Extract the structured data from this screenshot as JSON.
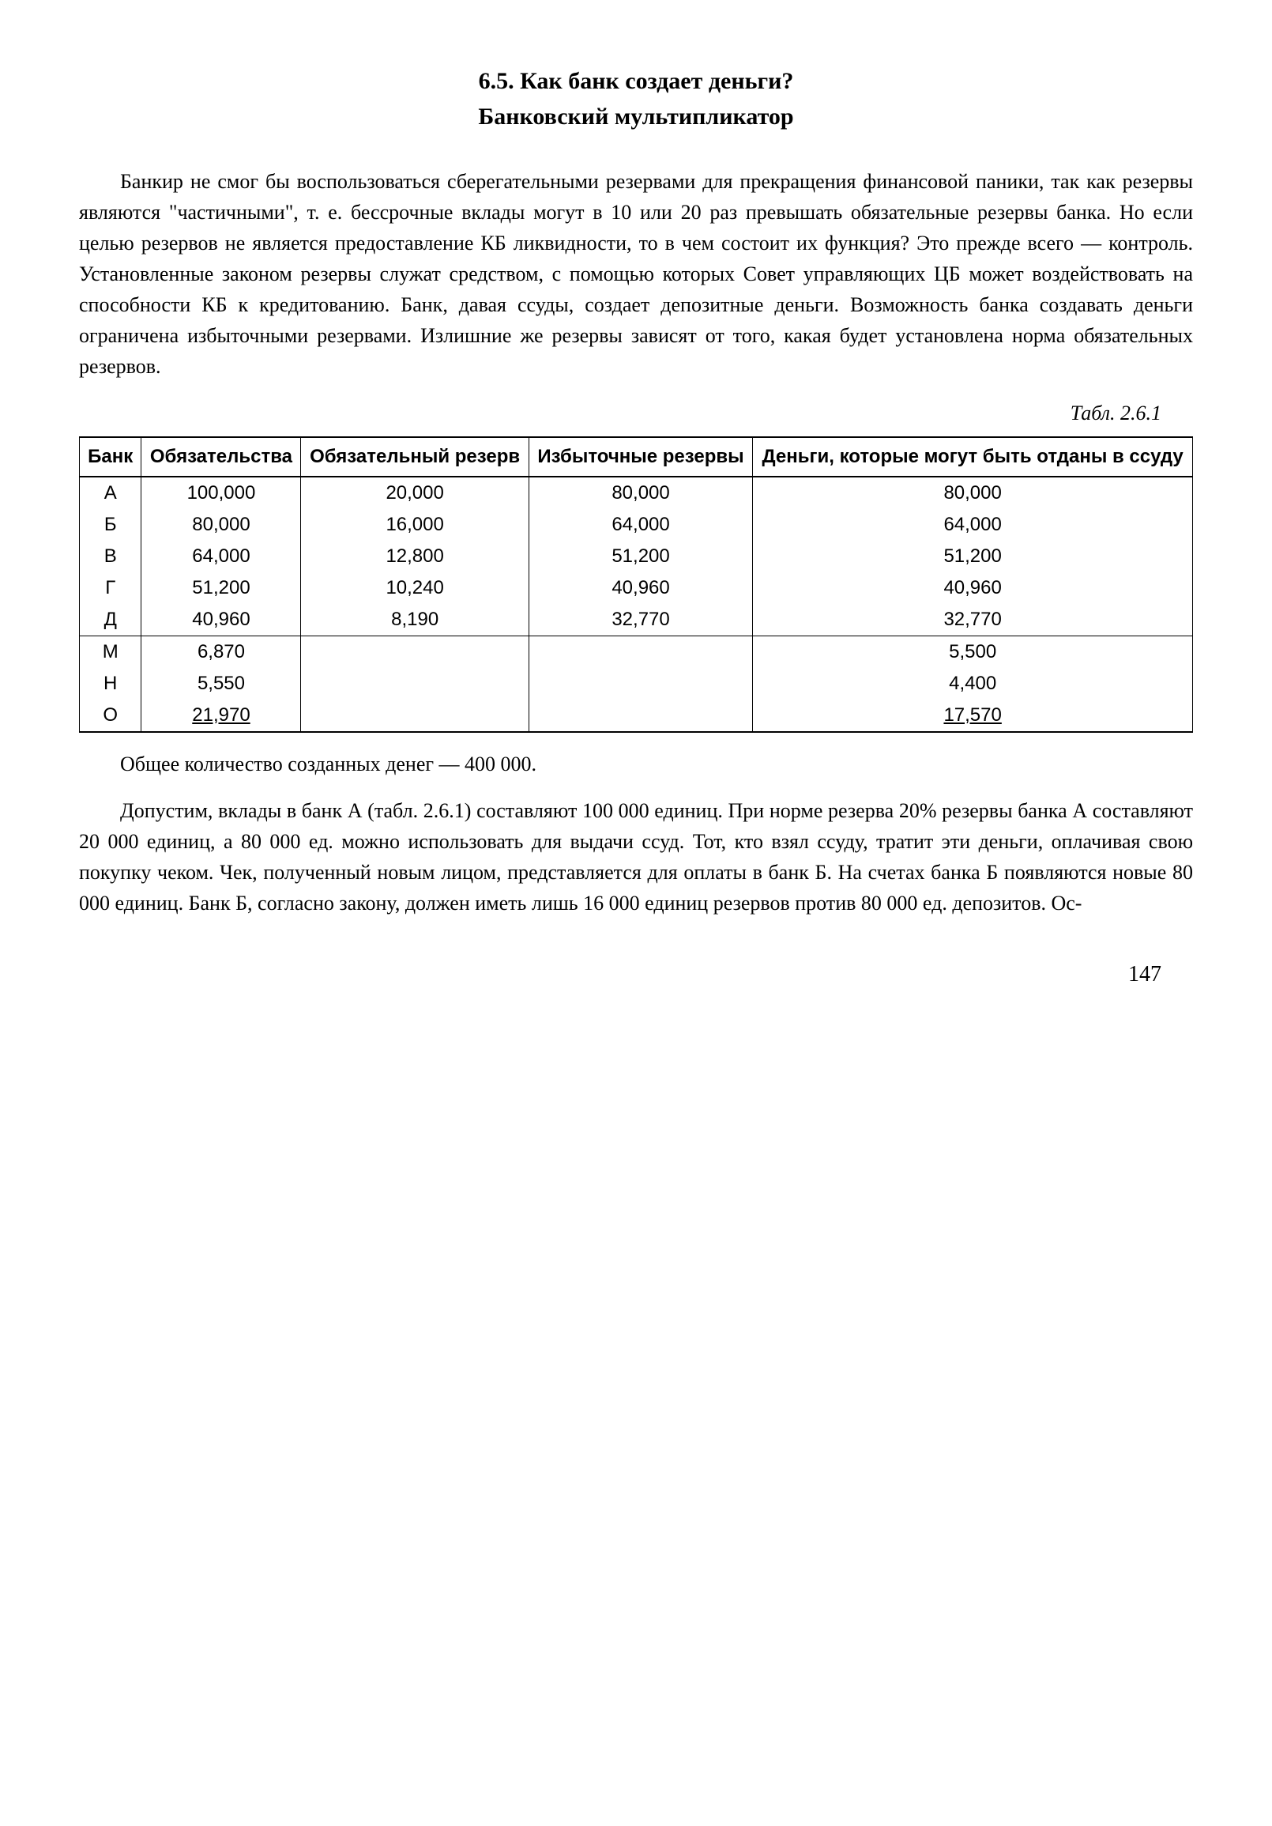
{
  "heading": {
    "line1": "6.5. Как банк создает деньги?",
    "line2": "Банковский мультипликатор"
  },
  "para1": "Банкир не смог бы воспользоваться сберегательными ре­зервами для прекращения финансовой паники, так как ре­зервы являются \"частичными\", т. е. бессрочные вклады могут в 10 или 20 раз превышать обязательные резервы банка. Но если целью резервов не является предоставление КБ ликвид­ности, то в чем состоит их функция? Это прежде всего — контроль. Установленные законом резервы служат средством, с помощью которых Совет управляющих ЦБ может воздей­ствовать на способности КБ к кредитованию. Банк, давая ссу­ды, создает депозитные деньги. Возможность банка создавать деньги ограничена избыточными резервами. Излишние же ре­зервы зависят от того, какая будет установлена норма обяза­тельных резервов.",
  "table": {
    "caption": "Табл. 2.6.1",
    "columns": [
      "Банк",
      "Обязатель­ства",
      "Обязатель­ный резерв",
      "Избыточные резервы",
      "Деньги, которые могут быть отданы в ссуду"
    ],
    "section1": [
      {
        "bank": "А",
        "v1": "100,000",
        "v2": "20,000",
        "v3": "80,000",
        "v4": "80,000"
      },
      {
        "bank": "Б",
        "v1": "80,000",
        "v2": "16,000",
        "v3": "64,000",
        "v4": "64,000"
      },
      {
        "bank": "В",
        "v1": "64,000",
        "v2": "12,800",
        "v3": "51,200",
        "v4": "51,200"
      },
      {
        "bank": "Г",
        "v1": "51,200",
        "v2": "10,240",
        "v3": "40,960",
        "v4": "40,960"
      },
      {
        "bank": "Д",
        "v1": "40,960",
        "v2": "8,190",
        "v3": "32,770",
        "v4": "32,770"
      }
    ],
    "section2": [
      {
        "bank": "М",
        "v1": "6,870",
        "v2": "",
        "v3": "",
        "v4": "5,500"
      },
      {
        "bank": "Н",
        "v1": "5,550",
        "v2": "",
        "v3": "",
        "v4": "4,400"
      },
      {
        "bank": "О",
        "v1": "21,970",
        "v2": "",
        "v3": "",
        "v4": "17,570"
      }
    ]
  },
  "para2": "Общее количество созданных денег — 400 000.",
  "para3": "Допустим, вклады в банк А (табл. 2.6.1) составляют 100 000 единиц. При норме резерва 20% резервы банка А составляют 20 000 единиц, а 80 000 ед. можно использовать для выдачи ссуд. Тот, кто взял ссуду, тратит эти деньги, оплачивая свою покупку чеком. Чек, полученный новым лицом, представля­ется для оплаты в банк Б. На счетах банка Б появляются но­вые 80 000 единиц. Банк Б, согласно закону, должен иметь лишь 16 000 единиц резервов против 80 000 ед. депозитов. Ос-",
  "pageNumber": "147"
}
